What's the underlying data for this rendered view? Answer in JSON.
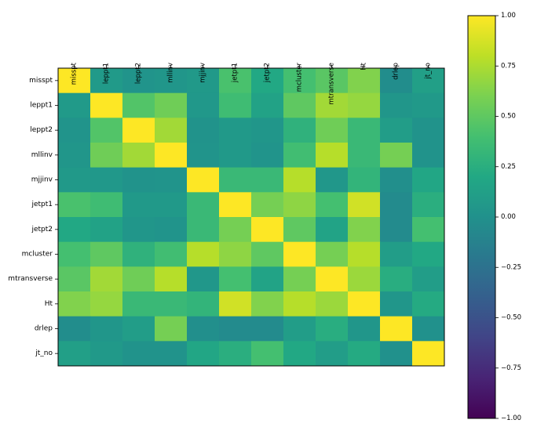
{
  "chart_data": {
    "type": "heatmap",
    "title": "",
    "xlabel": "",
    "ylabel": "",
    "labels": [
      "misspt",
      "leppt1",
      "leppt2",
      "mllinv",
      "mjjinv",
      "jetpt1",
      "jetpt2",
      "mcluster",
      "mtransverse",
      "Ht",
      "drlep",
      "jt_no"
    ],
    "matrix": [
      [
        1.0,
        0.08,
        0.03,
        0.04,
        0.07,
        0.42,
        0.2,
        0.4,
        0.48,
        0.62,
        -0.03,
        0.12
      ],
      [
        0.08,
        1.0,
        0.45,
        0.56,
        0.06,
        0.37,
        0.15,
        0.5,
        0.72,
        0.68,
        0.04,
        0.07
      ],
      [
        0.03,
        0.45,
        1.0,
        0.72,
        0.02,
        0.07,
        0.04,
        0.28,
        0.56,
        0.34,
        0.1,
        0.02
      ],
      [
        0.04,
        0.56,
        0.72,
        1.0,
        0.03,
        0.07,
        0.03,
        0.38,
        0.78,
        0.34,
        0.58,
        0.02
      ],
      [
        0.07,
        0.06,
        0.02,
        0.03,
        1.0,
        0.34,
        0.34,
        0.78,
        0.05,
        0.3,
        -0.02,
        0.18
      ],
      [
        0.42,
        0.37,
        0.07,
        0.07,
        0.34,
        1.0,
        0.58,
        0.66,
        0.4,
        0.86,
        -0.05,
        0.25
      ],
      [
        0.2,
        0.15,
        0.04,
        0.03,
        0.34,
        0.58,
        1.0,
        0.5,
        0.16,
        0.62,
        -0.05,
        0.4
      ],
      [
        0.4,
        0.5,
        0.28,
        0.38,
        0.78,
        0.66,
        0.5,
        1.0,
        0.58,
        0.78,
        0.1,
        0.2
      ],
      [
        0.48,
        0.72,
        0.56,
        0.78,
        0.05,
        0.4,
        0.16,
        0.58,
        1.0,
        0.7,
        0.24,
        0.1
      ],
      [
        0.62,
        0.68,
        0.34,
        0.34,
        0.3,
        0.86,
        0.62,
        0.78,
        0.7,
        1.0,
        0.04,
        0.22
      ],
      [
        -0.03,
        0.04,
        0.1,
        0.58,
        -0.02,
        -0.05,
        -0.05,
        0.1,
        0.24,
        0.04,
        1.0,
        0.0
      ],
      [
        0.12,
        0.07,
        0.02,
        0.02,
        0.18,
        0.25,
        0.4,
        0.2,
        0.1,
        0.22,
        0.0,
        1.0
      ]
    ],
    "colorbar": {
      "min": -1.0,
      "max": 1.0,
      "ticks": [
        "-1.00",
        "-0.75",
        "-0.50",
        "-0.25",
        "0.00",
        "0.25",
        "0.50",
        "0.75",
        "1.00"
      ],
      "colormap": "viridis"
    },
    "grid": false,
    "legend": "none"
  }
}
